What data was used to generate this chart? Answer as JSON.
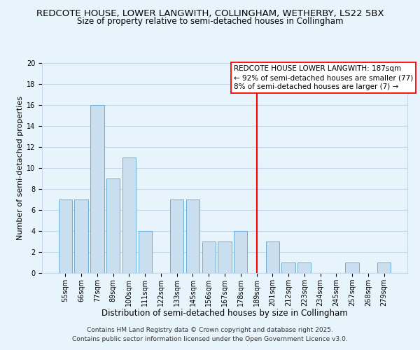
{
  "title": "REDCOTE HOUSE, LOWER LANGWITH, COLLINGHAM, WETHERBY, LS22 5BX",
  "subtitle": "Size of property relative to semi-detached houses in Collingham",
  "xlabel": "Distribution of semi-detached houses by size in Collingham",
  "ylabel": "Number of semi-detached properties",
  "bar_labels": [
    "55sqm",
    "66sqm",
    "77sqm",
    "89sqm",
    "100sqm",
    "111sqm",
    "122sqm",
    "133sqm",
    "145sqm",
    "156sqm",
    "167sqm",
    "178sqm",
    "189sqm",
    "201sqm",
    "212sqm",
    "223sqm",
    "234sqm",
    "245sqm",
    "257sqm",
    "268sqm",
    "279sqm"
  ],
  "bar_values": [
    7,
    7,
    16,
    9,
    11,
    4,
    0,
    7,
    7,
    3,
    3,
    4,
    0,
    3,
    1,
    1,
    0,
    0,
    1,
    0,
    1
  ],
  "bar_color": "#c9dff0",
  "bar_edge_color": "#6aaed6",
  "grid_color": "#c5d8ea",
  "background_color": "#e8f4fb",
  "vline_x": 12,
  "vline_color": "red",
  "ylim": [
    0,
    20
  ],
  "yticks": [
    0,
    2,
    4,
    6,
    8,
    10,
    12,
    14,
    16,
    18,
    20
  ],
  "annotation_title": "REDCOTE HOUSE LOWER LANGWITH: 187sqm",
  "annotation_line1": "← 92% of semi-detached houses are smaller (77)",
  "annotation_line2": "8% of semi-detached houses are larger (7) →",
  "footnote1": "Contains HM Land Registry data © Crown copyright and database right 2025.",
  "footnote2": "Contains public sector information licensed under the Open Government Licence v3.0.",
  "title_fontsize": 9.5,
  "subtitle_fontsize": 8.5,
  "xlabel_fontsize": 8.5,
  "ylabel_fontsize": 8,
  "tick_fontsize": 7,
  "annotation_fontsize": 7.5,
  "footnote_fontsize": 6.5
}
